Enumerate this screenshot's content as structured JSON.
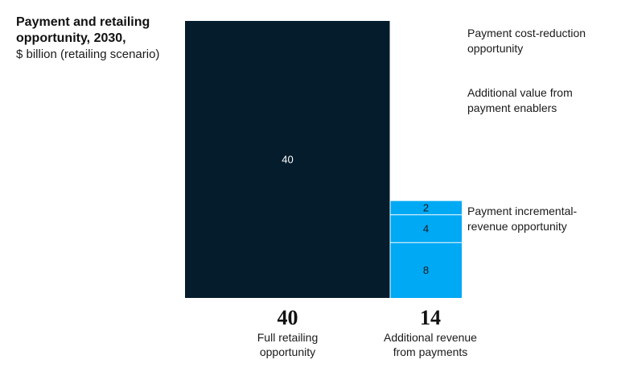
{
  "header": {
    "title": "Payment and retailing\nopportunity, 2030,",
    "subtitle": "$ billion (retailing scenario)"
  },
  "colors": {
    "dark": "#051c2c",
    "light": "#00a9f4",
    "divider": "#ffffff",
    "dark_label": "#ffffff",
    "light_label": "#1a1a1a"
  },
  "chart_data": {
    "type": "stacked-bar",
    "columns": [
      {
        "total": "40",
        "label": "Full retailing\nopportunity",
        "segments": [
          {
            "value": 40,
            "label": "40"
          }
        ]
      },
      {
        "total": "14",
        "label": "Additional revenue\nfrom payments",
        "segments": [
          {
            "value": 2,
            "label": "2",
            "name": "Payment cost-reduction\nopportunity"
          },
          {
            "value": 4,
            "label": "4",
            "name": "Additional value from\npayment enablers"
          },
          {
            "value": 8,
            "label": "8",
            "name": "Payment incremental-\nrevenue opportunity"
          }
        ]
      }
    ]
  }
}
